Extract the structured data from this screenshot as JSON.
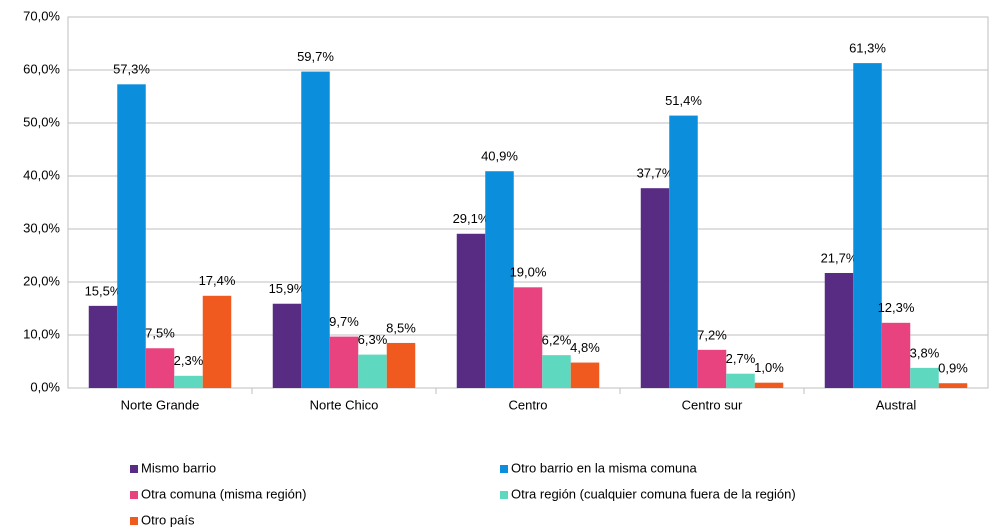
{
  "chart_data": {
    "type": "bar",
    "categories": [
      "Norte Grande",
      "Norte Chico",
      "Centro",
      "Centro sur",
      "Austral"
    ],
    "series": [
      {
        "name": "Mismo barrio",
        "color": "#582c83",
        "values": [
          15.5,
          15.9,
          29.1,
          37.7,
          21.7
        ],
        "value_labels": [
          "15,5%",
          "15,9%",
          "29,1%",
          "37,7%",
          "21,7%"
        ]
      },
      {
        "name": "Otro barrio en la misma comuna",
        "color": "#0b8fdc",
        "values": [
          57.3,
          59.7,
          40.9,
          51.4,
          61.3
        ],
        "value_labels": [
          "57,3%",
          "59,7%",
          "40,9%",
          "51,4%",
          "61,3%"
        ]
      },
      {
        "name": "Otra comuna (misma región)",
        "color": "#e8437f",
        "values": [
          7.5,
          9.7,
          19.0,
          7.2,
          12.3
        ],
        "value_labels": [
          "7,5%",
          "9,7%",
          "19,0%",
          "7,2%",
          "12,3%"
        ]
      },
      {
        "name": "Otra región (cualquier comuna fuera de la región)",
        "color": "#5fd8c0",
        "values": [
          2.3,
          6.3,
          6.2,
          2.7,
          3.8
        ],
        "value_labels": [
          "2,3%",
          "6,3%",
          "6,2%",
          "2,7%",
          "3,8%"
        ]
      },
      {
        "name": "Otro país",
        "color": "#f05a1e",
        "values": [
          17.4,
          8.5,
          4.8,
          1.0,
          0.9
        ],
        "value_labels": [
          "17,4%",
          "8,5%",
          "4,8%",
          "1,0%",
          "0,9%"
        ]
      }
    ],
    "ylim": [
      0,
      70
    ],
    "yticks": [
      {
        "value": 0,
        "label": "0,0%"
      },
      {
        "value": 10,
        "label": "10,0%"
      },
      {
        "value": 20,
        "label": "20,0%"
      },
      {
        "value": 30,
        "label": "30,0%"
      },
      {
        "value": 40,
        "label": "40,0%"
      },
      {
        "value": 50,
        "label": "50,0%"
      },
      {
        "value": 60,
        "label": "60,0%"
      },
      {
        "value": 70,
        "label": "70,0%"
      }
    ],
    "grid": true,
    "legend": "bottom"
  }
}
